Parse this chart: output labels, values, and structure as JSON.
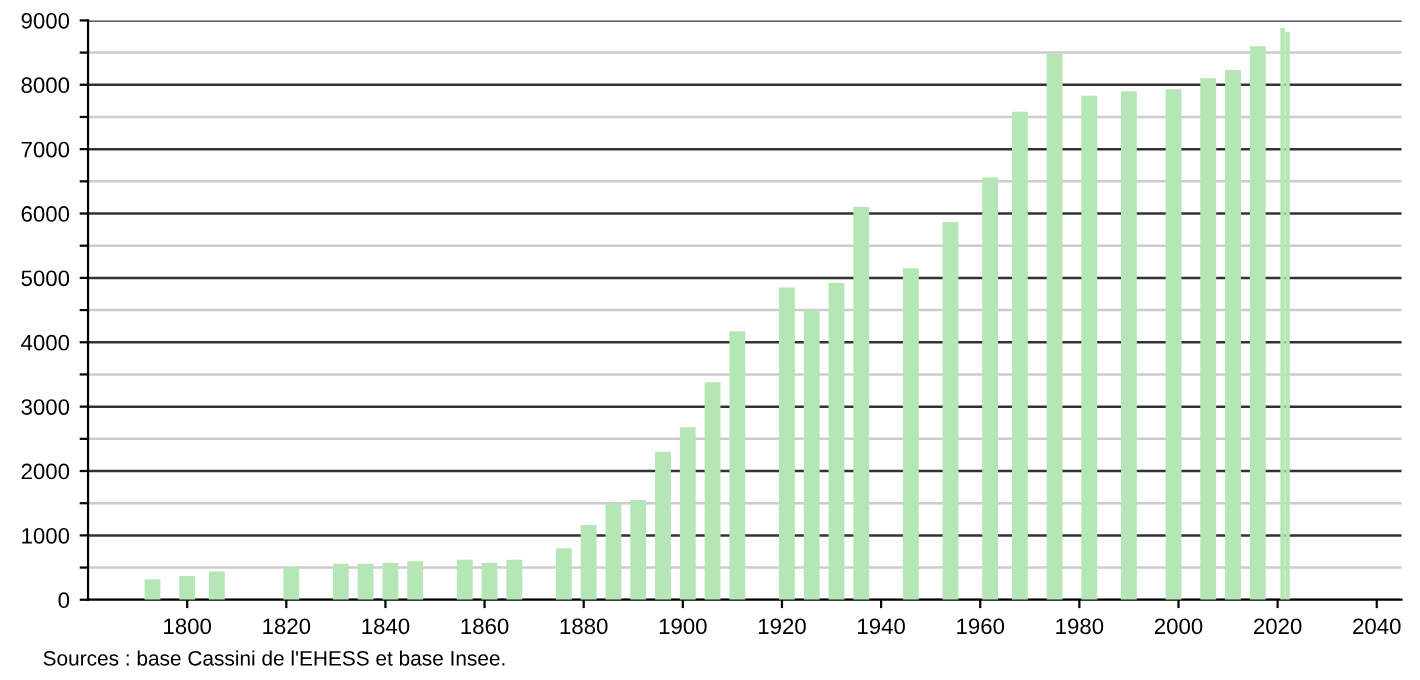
{
  "chart_data": {
    "type": "bar",
    "x": [
      1793,
      1800,
      1806,
      1821,
      1831,
      1836,
      1841,
      1846,
      1856,
      1861,
      1866,
      1876,
      1881,
      1886,
      1891,
      1896,
      1901,
      1906,
      1911,
      1921,
      1926,
      1931,
      1936,
      1946,
      1954,
      1962,
      1968,
      1975,
      1982,
      1990,
      1999,
      2006,
      2011,
      2016,
      2021,
      2022
    ],
    "values": [
      320,
      370,
      440,
      510,
      560,
      560,
      570,
      600,
      620,
      570,
      620,
      800,
      1160,
      1500,
      1550,
      2300,
      2680,
      3380,
      4170,
      4850,
      4500,
      4920,
      6100,
      5150,
      5870,
      6560,
      7580,
      8480,
      7830,
      7900,
      7930,
      8100,
      8230,
      8600,
      8880,
      8820
    ],
    "color": "#b5e6b5",
    "xlim": [
      1780,
      2045
    ],
    "xticks": [
      1800,
      1820,
      1840,
      1860,
      1880,
      1900,
      1920,
      1940,
      1960,
      1980,
      2000,
      2020,
      2040
    ],
    "ylim": [
      0,
      9000
    ],
    "yticks": [
      0,
      {
        "value": 500,
        "label": null
      },
      1000,
      {
        "value": 1500,
        "label": null
      },
      2000,
      {
        "value": 2500,
        "label": null
      },
      3000,
      {
        "value": 3500,
        "label": null
      },
      4000,
      {
        "value": 4500,
        "label": null
      },
      5000,
      {
        "value": 5500,
        "label": null
      },
      6000,
      {
        "value": 6500,
        "label": null
      },
      7000,
      {
        "value": 7500,
        "label": null
      },
      8000,
      {
        "value": 8500,
        "label": null
      },
      9000
    ],
    "grid": "y",
    "annotations": [
      "Sources : base Cassini de l'EHESS et base Insee."
    ]
  }
}
